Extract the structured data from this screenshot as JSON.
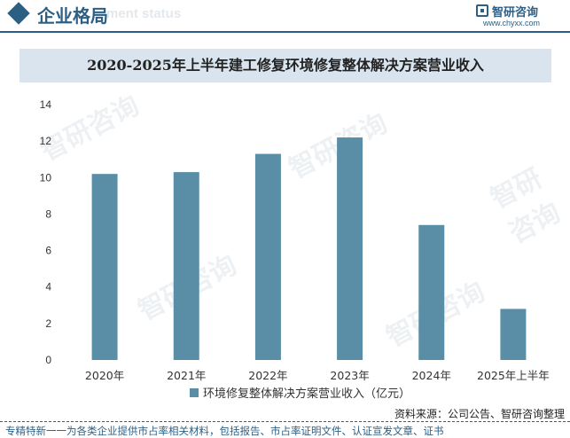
{
  "header": {
    "title": "企业格局",
    "watermark_text": "ment status",
    "logo_name": "智研咨询",
    "logo_url": "www.chyxx.com",
    "accent_color": "#2d5f85",
    "icon": "diamond-icon"
  },
  "watermark": "智研咨询",
  "chart_data": {
    "type": "bar",
    "title": "2020-2025年上半年建工修复环境修复整体解决方案营业收入",
    "categories": [
      "2020年",
      "2021年",
      "2022年",
      "2023年",
      "2024年",
      "2025年上半年"
    ],
    "series": [
      {
        "name": "环境修复整体解决方案营业收入（亿元）",
        "values": [
          10.2,
          10.3,
          11.3,
          12.2,
          7.4,
          2.8
        ],
        "color": "#5a8ea6"
      }
    ],
    "ylim": [
      0,
      14
    ],
    "yticks": [
      0,
      2,
      4,
      6,
      8,
      10,
      12,
      14
    ],
    "xlabel": "",
    "ylabel": "",
    "grid": false,
    "legend_position": "bottom"
  },
  "source": "资料来源：公司公告、智研咨询整理",
  "footer": "专精特新一一为各类企业提供市占率相关材料，包括报告、市占率证明文件、认证宣发文章、证书"
}
